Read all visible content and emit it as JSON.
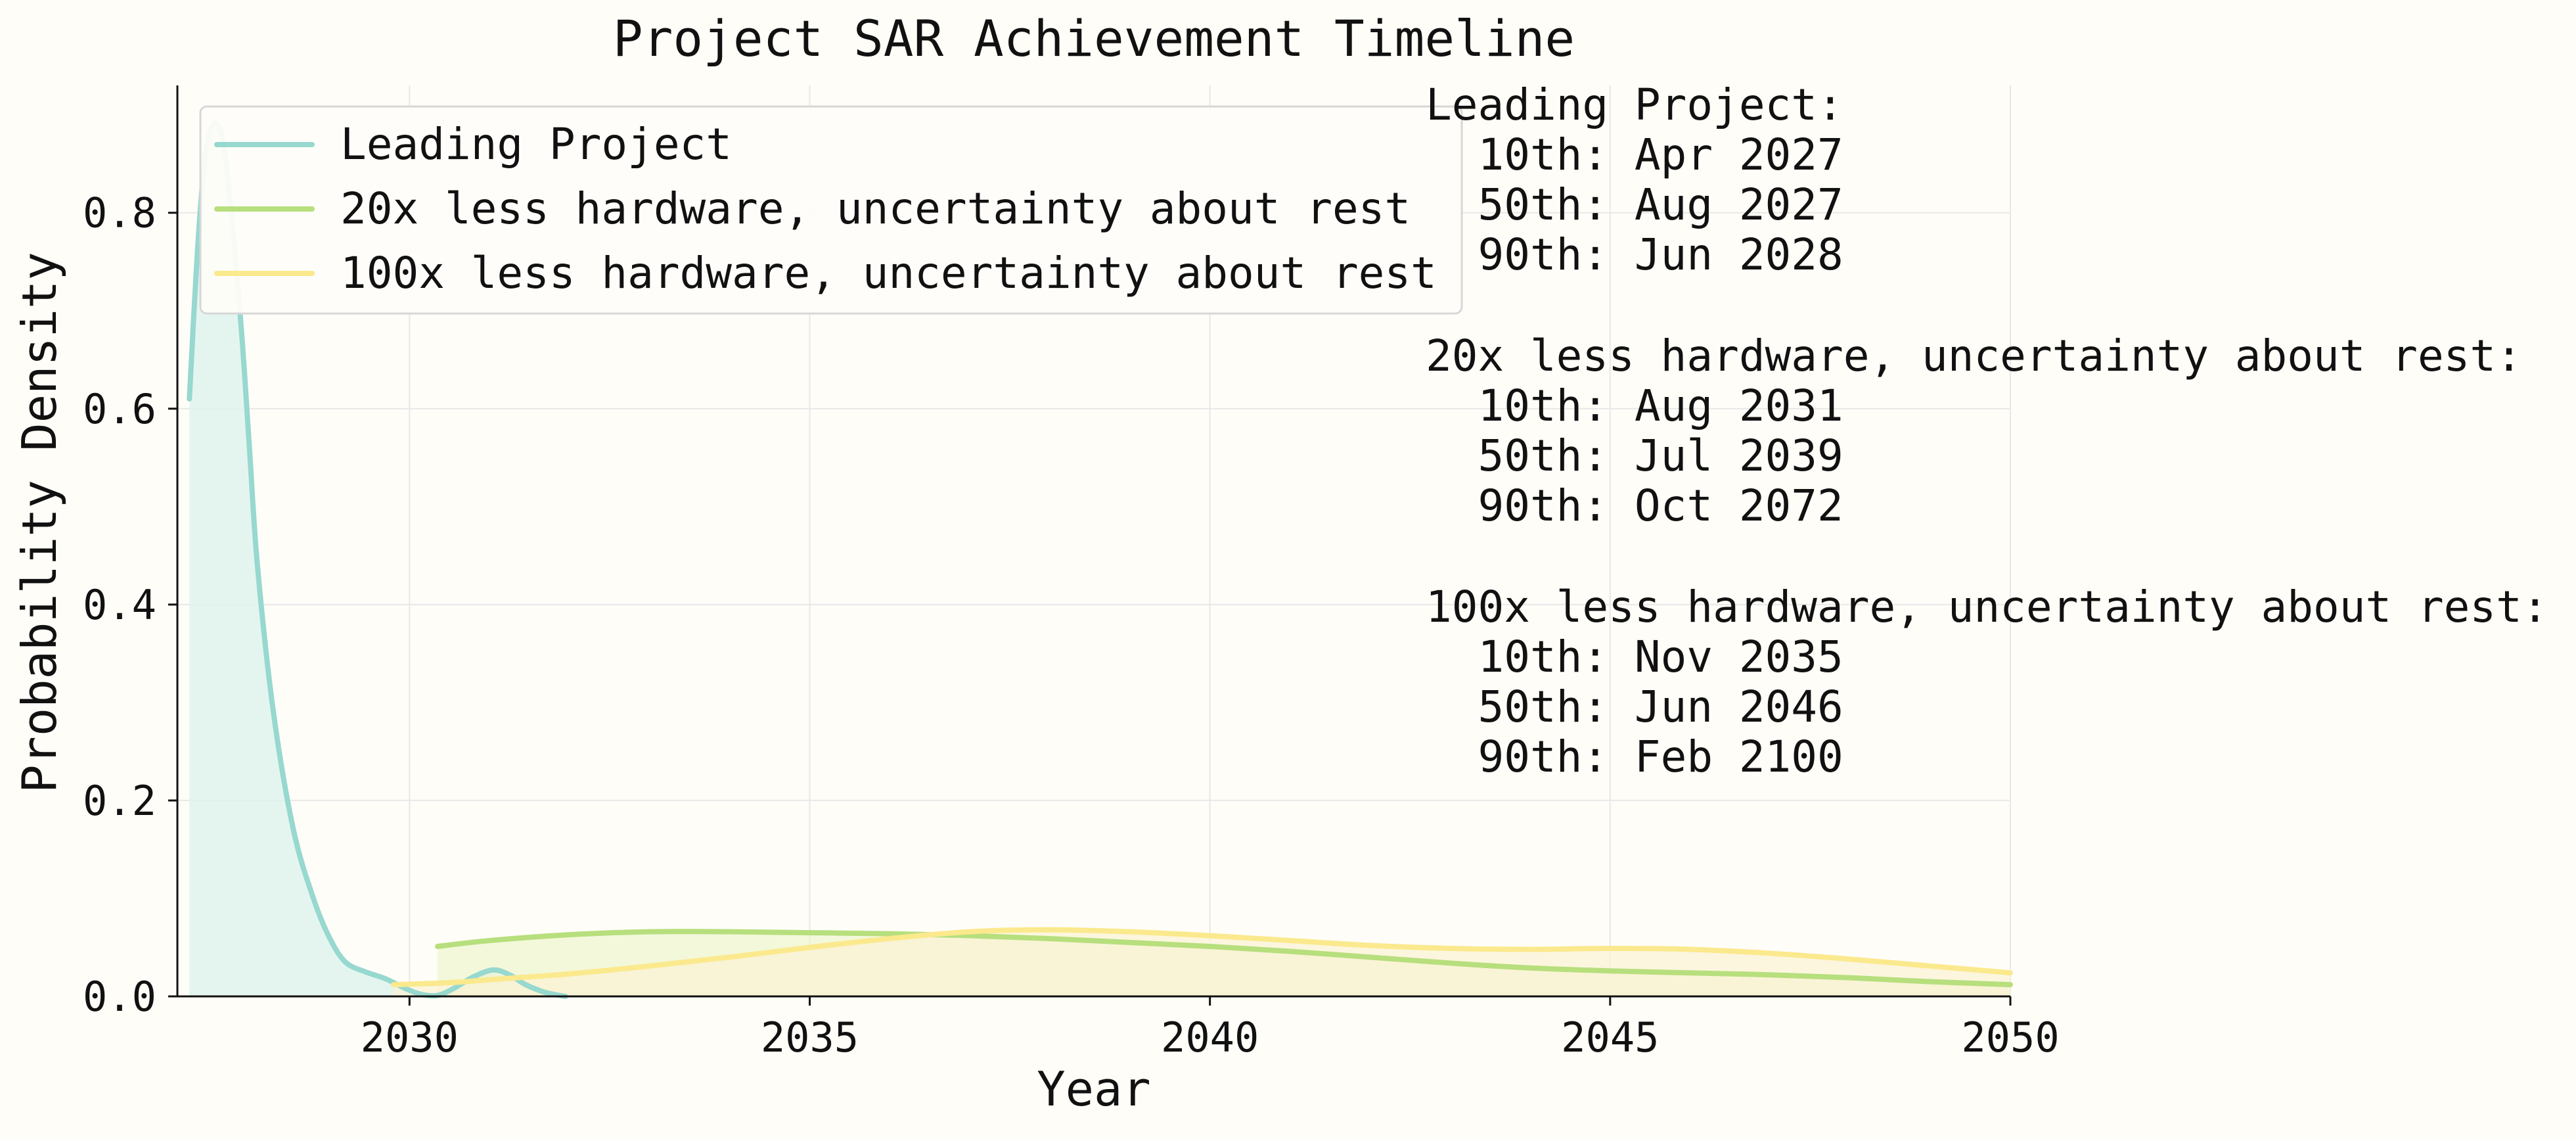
{
  "chart_data": {
    "type": "line",
    "title": "Project SAR Achievement Timeline",
    "xlabel": "Year",
    "ylabel": "Probability Density",
    "xlim": [
      2027.1,
      2050
    ],
    "ylim": [
      0,
      0.93
    ],
    "x_ticks": [
      2030,
      2035,
      2040,
      2045,
      2050
    ],
    "y_ticks": [
      0.0,
      0.2,
      0.4,
      0.6,
      0.8
    ],
    "x_tick_labels": [
      "2030",
      "2035",
      "2040",
      "2045",
      "2050"
    ],
    "y_tick_labels": [
      "0.0",
      "0.2",
      "0.4",
      "0.6",
      "0.8"
    ],
    "grid": true,
    "legend_position": "top-left",
    "series": [
      {
        "name": "Leading Project",
        "color": "#97d8cf",
        "fill": "#dff3ef",
        "x": [
          2027.25,
          2027.35,
          2027.45,
          2027.55,
          2027.65,
          2027.75,
          2027.9,
          2028.0,
          2028.1,
          2028.3,
          2028.55,
          2028.8,
          2029.0,
          2029.2,
          2029.45,
          2029.7,
          2029.95,
          2030.15,
          2030.35,
          2030.55,
          2030.8,
          2031.05,
          2031.25,
          2031.45,
          2031.7,
          2031.95
        ],
        "y": [
          0.61,
          0.76,
          0.86,
          0.89,
          0.88,
          0.82,
          0.68,
          0.56,
          0.44,
          0.29,
          0.17,
          0.1,
          0.06,
          0.035,
          0.025,
          0.018,
          0.008,
          0.002,
          0.001,
          0.008,
          0.02,
          0.027,
          0.022,
          0.012,
          0.004,
          0.0
        ]
      },
      {
        "name": "20x less hardware, uncertainty about rest",
        "color": "#b7df7d",
        "fill": "#eef5cf",
        "x": [
          2030.35,
          2031,
          2032,
          2033,
          2034,
          2035,
          2036,
          2037,
          2038,
          2039,
          2040,
          2041,
          2042,
          2043,
          2044,
          2045,
          2046,
          2047,
          2048,
          2049,
          2050
        ],
        "y": [
          0.051,
          0.057,
          0.063,
          0.066,
          0.066,
          0.065,
          0.064,
          0.062,
          0.059,
          0.055,
          0.051,
          0.046,
          0.04,
          0.034,
          0.029,
          0.026,
          0.024,
          0.022,
          0.019,
          0.015,
          0.012
        ]
      },
      {
        "name": "100x less hardware, uncertainty about rest",
        "color": "#fbe98d",
        "fill": "#fbf3d4",
        "x": [
          2029.8,
          2030.5,
          2031,
          2032,
          2033,
          2034,
          2035,
          2036,
          2037,
          2038,
          2039,
          2040,
          2041,
          2042,
          2043,
          2044,
          2045,
          2046,
          2047,
          2048,
          2049,
          2050
        ],
        "y": [
          0.012,
          0.014,
          0.017,
          0.023,
          0.031,
          0.04,
          0.05,
          0.059,
          0.066,
          0.068,
          0.066,
          0.062,
          0.057,
          0.052,
          0.049,
          0.048,
          0.049,
          0.048,
          0.044,
          0.038,
          0.031,
          0.024
        ]
      }
    ],
    "annotation_lines": [
      "Leading Project:",
      "  10th: Apr 2027",
      "  50th: Aug 2027",
      "  90th: Jun 2028",
      "",
      "20x less hardware, uncertainty about rest:",
      "  10th: Aug 2031",
      "  50th: Jul 2039",
      "  90th: Oct 2072",
      "",
      "100x less hardware, uncertainty about rest:",
      "  10th: Nov 2035",
      "  50th: Jun 2046",
      "  90th: Feb 2100"
    ]
  }
}
